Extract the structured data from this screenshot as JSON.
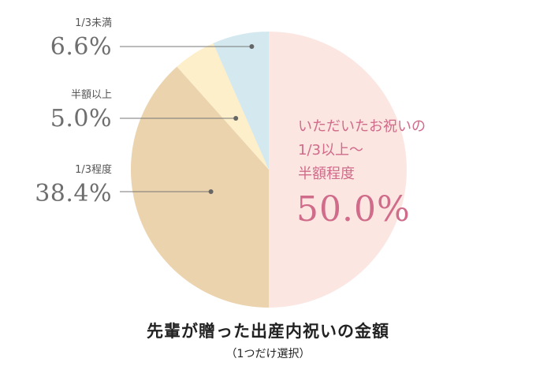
{
  "chart_data": {
    "type": "pie",
    "title": "先輩が贈った出産内祝いの金額",
    "subtitle": "（1つだけ選択）",
    "slices": [
      {
        "label": "いただいたお祝いの1/3以上〜半額程度",
        "label_lines": [
          "いただいたお祝いの",
          "1/3以上〜",
          "半額程度"
        ],
        "value": 50.0,
        "value_text": "50.0%",
        "color": "#fbe6e2"
      },
      {
        "label": "1/3程度",
        "value": 38.4,
        "value_text": "38.4%",
        "color": "#ebd3ae"
      },
      {
        "label": "半額以上",
        "value": 5.0,
        "value_text": "5.0%",
        "color": "#fcefc9"
      },
      {
        "label": "1/3未満",
        "value": 6.6,
        "value_text": "6.6%",
        "color": "#d3e9ef"
      }
    ]
  }
}
